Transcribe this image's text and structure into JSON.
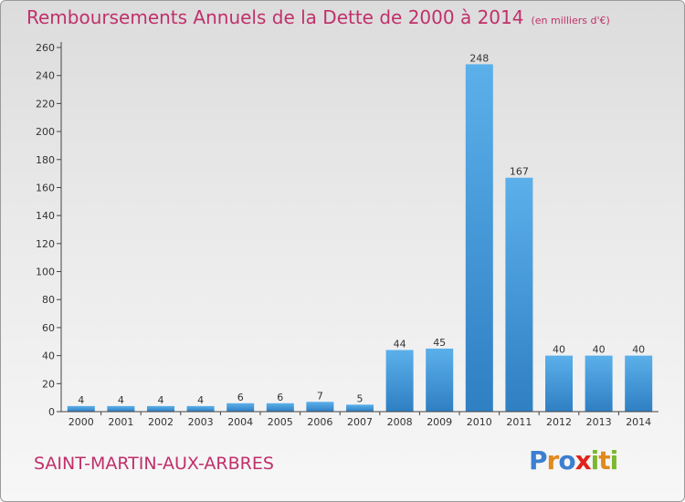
{
  "header": {
    "title": "Remboursements Annuels de la Dette de 2000 à 2014",
    "unit": "(en milliers d'€)"
  },
  "footer": {
    "commune": "SAINT-MARTIN-AUX-ARBRES",
    "brand_letters": [
      {
        "ch": "P",
        "color": "#3b7fd1"
      },
      {
        "ch": "r",
        "color": "#e08a1f"
      },
      {
        "ch": "o",
        "color": "#3b7fd1"
      },
      {
        "ch": "x",
        "color": "#e2231a"
      },
      {
        "ch": "i",
        "color": "#7cb82f"
      },
      {
        "ch": "t",
        "color": "#e08a1f"
      },
      {
        "ch": "i",
        "color": "#7cb82f"
      }
    ]
  },
  "chart_data": {
    "type": "bar",
    "categories": [
      "2000",
      "2001",
      "2002",
      "2003",
      "2004",
      "2005",
      "2006",
      "2007",
      "2008",
      "2009",
      "2010",
      "2011",
      "2012",
      "2013",
      "2014"
    ],
    "values": [
      4,
      4,
      4,
      4,
      6,
      6,
      7,
      5,
      44,
      45,
      248,
      167,
      40,
      40,
      40
    ],
    "title": "Remboursements Annuels de la Dette de 2000 à 2014",
    "ylim": [
      0,
      260
    ],
    "yticks": [
      0,
      20,
      40,
      60,
      80,
      100,
      120,
      140,
      160,
      180,
      200,
      220,
      240,
      260
    ],
    "grid": false,
    "legend": "none",
    "bar_color_top": "#5bb0ea",
    "bar_color_bottom": "#2f7fc3",
    "axis_color": "#444444"
  }
}
